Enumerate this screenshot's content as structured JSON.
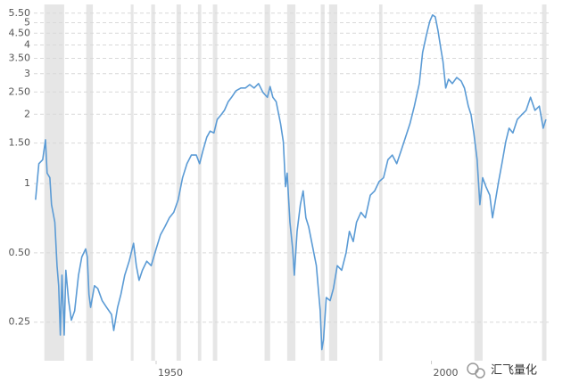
{
  "chart_data": {
    "type": "line",
    "log_scale": true,
    "grid": true,
    "color": "#5b9bd5",
    "shade_color": "#e6e6e6",
    "watermark": "汇飞量化",
    "xlim": [
      1927.8,
      2021.3
    ],
    "xticks": [
      1950,
      2000
    ],
    "ylim": [
      0.17,
      6.0
    ],
    "yticks": [
      {
        "value": 0.25,
        "label": "0.25"
      },
      {
        "value": 0.5,
        "label": "0.50"
      },
      1,
      {
        "value": 1.5,
        "label": "1.50"
      },
      2,
      {
        "value": 2.5,
        "label": "2.50"
      },
      3,
      {
        "value": 3.5,
        "label": "3.50"
      },
      4,
      {
        "value": 4.5,
        "label": "4.50"
      },
      5,
      {
        "value": 5.5,
        "label": "5.50"
      }
    ],
    "shaded_ranges": [
      [
        1929.7,
        1933.3
      ],
      [
        1937.3,
        1938.5
      ],
      [
        1945.4,
        1945.9
      ],
      [
        1949.1,
        1949.8
      ],
      [
        1953.7,
        1954.5
      ],
      [
        1957.6,
        1958.2
      ],
      [
        1960.3,
        1961.1
      ],
      [
        1969.7,
        1970.7
      ],
      [
        1973.8,
        1975.3
      ],
      [
        1979.9,
        1980.6
      ],
      [
        1981.4,
        1982.9
      ],
      [
        1990.5,
        1991.1
      ],
      [
        2007.8,
        2009.3
      ],
      [
        2020.1,
        2020.9
      ]
    ],
    "x": [
      1928.1,
      1928.7,
      1929.4,
      1929.9,
      1930.2,
      1930.7,
      1931.0,
      1931.6,
      1932.0,
      1932.3,
      1932.6,
      1932.9,
      1933.3,
      1933.6,
      1934.1,
      1934.6,
      1935.2,
      1935.9,
      1936.5,
      1937.2,
      1937.5,
      1937.8,
      1938.1,
      1938.8,
      1939.4,
      1940.2,
      1941.0,
      1941.9,
      1942.3,
      1943.0,
      1943.6,
      1944.3,
      1945.1,
      1945.9,
      1946.4,
      1946.9,
      1947.5,
      1948.3,
      1949.1,
      1950.0,
      1950.8,
      1951.6,
      1952.4,
      1953.2,
      1954.0,
      1954.8,
      1955.6,
      1956.4,
      1957.3,
      1957.9,
      1958.5,
      1959.2,
      1959.8,
      1960.5,
      1961.1,
      1961.8,
      1962.4,
      1963.1,
      1963.7,
      1964.5,
      1965.4,
      1966.2,
      1967.0,
      1967.8,
      1968.6,
      1969.4,
      1970.2,
      1970.7,
      1971.2,
      1971.8,
      1972.6,
      1973.1,
      1973.5,
      1973.8,
      1974.3,
      1974.8,
      1975.1,
      1975.6,
      1976.2,
      1976.7,
      1977.2,
      1977.7,
      1978.3,
      1979.1,
      1979.8,
      1980.1,
      1980.4,
      1980.9,
      1981.6,
      1982.2,
      1982.9,
      1983.7,
      1984.5,
      1985.1,
      1985.8,
      1986.4,
      1987.2,
      1988.0,
      1988.9,
      1989.7,
      1990.5,
      1991.3,
      1992.1,
      1992.9,
      1993.7,
      1994.5,
      1995.3,
      1996.1,
      1996.9,
      1997.8,
      1998.4,
      1999.1,
      1999.7,
      2000.2,
      2000.7,
      2001.2,
      2001.7,
      2002.1,
      2002.6,
      2003.1,
      2003.8,
      2004.6,
      2005.4,
      2006.0,
      2006.7,
      2007.2,
      2007.7,
      2008.3,
      2008.8,
      2009.3,
      2009.9,
      2010.6,
      2011.1,
      2011.5,
      2012.2,
      2012.8,
      2013.5,
      2014.1,
      2014.8,
      2015.6,
      2016.4,
      2017.2,
      2018.0,
      2018.8,
      2019.6,
      2020.3,
      2020.8
    ],
    "values": [
      0.85,
      1.22,
      1.27,
      1.55,
      1.11,
      1.06,
      0.81,
      0.68,
      0.44,
      0.36,
      0.22,
      0.4,
      0.22,
      0.42,
      0.31,
      0.255,
      0.28,
      0.4,
      0.48,
      0.52,
      0.48,
      0.33,
      0.29,
      0.36,
      0.35,
      0.31,
      0.29,
      0.27,
      0.23,
      0.29,
      0.33,
      0.4,
      0.46,
      0.55,
      0.44,
      0.38,
      0.42,
      0.46,
      0.44,
      0.52,
      0.6,
      0.65,
      0.71,
      0.75,
      0.85,
      1.06,
      1.22,
      1.33,
      1.33,
      1.22,
      1.39,
      1.59,
      1.69,
      1.66,
      1.9,
      1.99,
      2.08,
      2.27,
      2.37,
      2.53,
      2.6,
      2.6,
      2.69,
      2.6,
      2.72,
      2.49,
      2.37,
      2.64,
      2.37,
      2.27,
      1.82,
      1.52,
      0.97,
      1.11,
      0.68,
      0.52,
      0.4,
      0.62,
      0.81,
      0.93,
      0.71,
      0.65,
      0.55,
      0.44,
      0.28,
      0.19,
      0.21,
      0.32,
      0.31,
      0.35,
      0.44,
      0.42,
      0.5,
      0.62,
      0.56,
      0.68,
      0.75,
      0.71,
      0.89,
      0.93,
      1.02,
      1.06,
      1.27,
      1.33,
      1.22,
      1.39,
      1.59,
      1.82,
      2.17,
      2.72,
      3.71,
      4.43,
      5.07,
      5.4,
      5.3,
      4.61,
      3.87,
      3.39,
      2.6,
      2.84,
      2.72,
      2.89,
      2.79,
      2.6,
      2.17,
      1.99,
      1.66,
      1.27,
      0.81,
      1.06,
      0.97,
      0.89,
      0.71,
      0.81,
      1.02,
      1.22,
      1.52,
      1.74,
      1.66,
      1.9,
      1.99,
      2.08,
      2.37,
      2.08,
      2.17,
      1.74,
      1.9
    ]
  }
}
